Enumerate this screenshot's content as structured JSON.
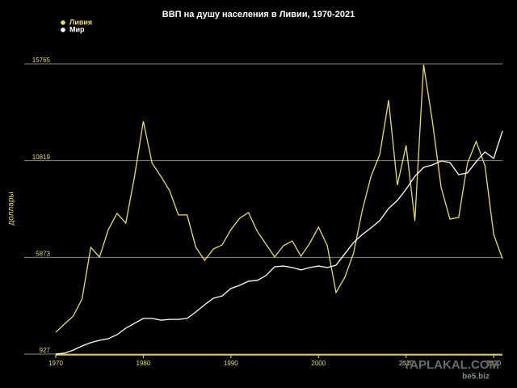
{
  "chart_data": {
    "type": "line",
    "title": "ВВП на душу населения в Ливии, 1970-2021",
    "y_label": "доллары",
    "x": [
      1970,
      1971,
      1972,
      1973,
      1974,
      1975,
      1976,
      1977,
      1978,
      1979,
      1980,
      1981,
      1982,
      1983,
      1984,
      1985,
      1986,
      1987,
      1988,
      1989,
      1990,
      1991,
      1992,
      1993,
      1994,
      1995,
      1996,
      1997,
      1998,
      1999,
      2000,
      2001,
      2002,
      2003,
      2004,
      2005,
      2006,
      2007,
      2008,
      2009,
      2010,
      2011,
      2012,
      2013,
      2014,
      2015,
      2016,
      2017,
      2018,
      2019,
      2020,
      2021
    ],
    "series": [
      {
        "name": "Ливия",
        "color": "#e8dc64",
        "values": [
          2040,
          2460,
          2870,
          3740,
          6380,
          5890,
          7290,
          8120,
          7620,
          10020,
          12830,
          10680,
          10020,
          9280,
          8040,
          8040,
          6380,
          5720,
          6300,
          6510,
          7290,
          7870,
          8160,
          7210,
          6550,
          5890,
          6470,
          6710,
          5930,
          6590,
          7420,
          6470,
          4070,
          4850,
          6090,
          8280,
          10020,
          11140,
          13900,
          9570,
          11590,
          7750,
          15720,
          12830,
          9440,
          7830,
          7910,
          10680,
          11800,
          10560,
          7040,
          5800
        ]
      },
      {
        "name": "Мир",
        "color": "#ffffff",
        "values": [
          930,
          970,
          1130,
          1340,
          1510,
          1630,
          1710,
          1920,
          2250,
          2500,
          2750,
          2750,
          2660,
          2700,
          2700,
          2750,
          3080,
          3450,
          3780,
          3900,
          4280,
          4440,
          4650,
          4690,
          4940,
          5390,
          5430,
          5350,
          5230,
          5350,
          5430,
          5350,
          5470,
          6050,
          6630,
          7040,
          7380,
          7750,
          8370,
          8780,
          9360,
          10020,
          10470,
          10600,
          10800,
          10720,
          10100,
          10190,
          10760,
          11260,
          10930,
          12330
        ]
      }
    ],
    "xlim": [
      1970,
      2021
    ],
    "xticks": [
      1970,
      1980,
      1990,
      2000,
      2010,
      2020
    ],
    "ylim": [
      927,
      15765
    ],
    "yticks": [
      927,
      5873,
      10819,
      15765
    ],
    "grid": true,
    "legend": "top-left",
    "watermark": [
      "YAPLAKAL.COM",
      "be5.biz"
    ]
  }
}
